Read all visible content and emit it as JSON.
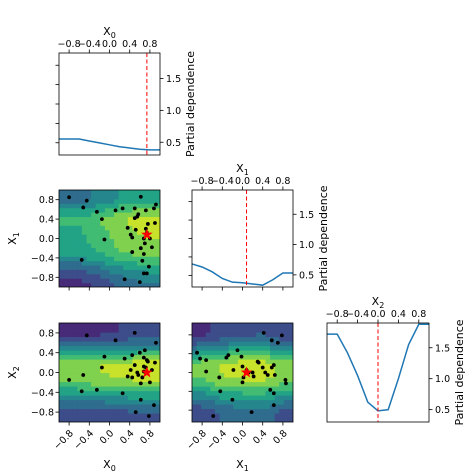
{
  "chart_data": {
    "type": "pairplot",
    "variables": [
      {
        "name": "X",
        "sub": "0",
        "ticks": [
          "−0.8",
          "−0.4",
          "0.0",
          "0.4",
          "0.8"
        ],
        "tick_values": [
          -0.8,
          -0.4,
          0.0,
          0.4,
          0.8
        ],
        "range": [
          -1.0,
          1.0
        ]
      },
      {
        "name": "X",
        "sub": "1",
        "ticks": [
          "−0.8",
          "−0.4",
          "0.0",
          "0.4",
          "0.8"
        ],
        "tick_values": [
          -0.8,
          -0.4,
          0.0,
          0.4,
          0.8
        ],
        "range": [
          -1.0,
          1.0
        ]
      },
      {
        "name": "X",
        "sub": "2",
        "ticks": [
          "−0.8",
          "−0.4",
          "0.0",
          "0.4",
          "0.8"
        ],
        "tick_values": [
          -0.8,
          -0.4,
          0.0,
          0.4,
          0.8
        ],
        "range": [
          -1.0,
          1.0
        ]
      }
    ],
    "diagonal": [
      {
        "ylabel": "Partial dependence",
        "yticks": [
          "0.5",
          "1.0",
          "1.5"
        ],
        "ytick_values": [
          0.5,
          1.0,
          1.5
        ],
        "ylim": [
          0.3,
          1.9
        ],
        "line_color": "#1f77b4",
        "x": [
          -1.0,
          -0.8,
          -0.6,
          -0.4,
          -0.2,
          0.0,
          0.2,
          0.4,
          0.6,
          0.8,
          1.0
        ],
        "y": [
          0.55,
          0.55,
          0.55,
          0.52,
          0.49,
          0.46,
          0.43,
          0.41,
          0.39,
          0.38,
          0.38
        ],
        "best": 0.74
      },
      {
        "ylabel": "Partial dependence",
        "yticks": [
          "0.5",
          "1.0",
          "1.5"
        ],
        "ytick_values": [
          0.5,
          1.0,
          1.5
        ],
        "ylim": [
          0.3,
          1.9
        ],
        "line_color": "#1f77b4",
        "x": [
          -1.0,
          -0.8,
          -0.6,
          -0.4,
          -0.2,
          0.0,
          0.2,
          0.4,
          0.6,
          0.8,
          1.0
        ],
        "y": [
          0.68,
          0.63,
          0.55,
          0.44,
          0.38,
          0.37,
          0.35,
          0.33,
          0.42,
          0.53,
          0.53
        ],
        "best": 0.08
      },
      {
        "ylabel": "Partial dependence",
        "yticks": [
          "0.5",
          "1.0",
          "1.5"
        ],
        "ytick_values": [
          0.5,
          1.0,
          1.5
        ],
        "ylim": [
          0.3,
          1.9
        ],
        "line_color": "#1f77b4",
        "x": [
          -1.0,
          -0.8,
          -0.6,
          -0.4,
          -0.2,
          0.0,
          0.2,
          0.4,
          0.6,
          0.8,
          1.0
        ],
        "y": [
          1.72,
          1.72,
          1.42,
          1.05,
          0.62,
          0.48,
          0.5,
          1.0,
          1.55,
          1.88,
          1.88
        ],
        "best": 0.0
      }
    ],
    "best_marker_color": "#ff0000",
    "points": [
      [
        0.92,
        0.7,
        0.6
      ],
      [
        0.84,
        -0.18,
        0.05
      ],
      [
        0.52,
        0.18,
        -0.8
      ],
      [
        0.72,
        0.58,
        0.1
      ],
      [
        0.68,
        -0.32,
        0.3
      ],
      [
        0.62,
        -0.2,
        -0.55
      ],
      [
        0.65,
        -0.46,
        -0.1
      ],
      [
        0.74,
        0.12,
        0.0
      ],
      [
        0.76,
        0.3,
        0.22
      ],
      [
        0.6,
        -0.9,
        0.4
      ],
      [
        0.57,
        0.5,
        -0.05
      ],
      [
        0.72,
        0.2,
        0.0
      ],
      [
        0.88,
        0.62,
        -0.66
      ],
      [
        0.5,
        0.42,
        0.8
      ],
      [
        0.8,
        0.0,
        -0.2
      ],
      [
        0.9,
        0.32,
        0.2
      ],
      [
        0.42,
        0.08,
        0.05
      ],
      [
        0.3,
        -0.84,
        0.28
      ],
      [
        -0.25,
        0.55,
        -0.35
      ],
      [
        -0.15,
        0.4,
        0.1
      ],
      [
        -0.52,
        0.64,
        -0.05
      ],
      [
        0.55,
        0.45,
        0.0
      ],
      [
        0.45,
        -0.28,
        0.35
      ],
      [
        0.68,
        -0.72,
        0.02
      ],
      [
        0.7,
        -0.1,
        0.45
      ],
      [
        0.36,
        0.22,
        -0.08
      ],
      [
        0.5,
        0.62,
        0.15
      ],
      [
        0.26,
        0.62,
        -0.42
      ],
      [
        -0.55,
        -0.44,
        -0.38
      ],
      [
        0.12,
        0.58,
        0.65
      ],
      [
        -0.8,
        0.85,
        -0.15
      ],
      [
        0.78,
        -0.58,
        -0.88
      ],
      [
        0.74,
        -0.72,
        0.25
      ],
      [
        0.62,
        0.86,
        -0.22
      ],
      [
        0.45,
        0.02,
        -0.1
      ],
      [
        -0.45,
        0.78,
        0.75
      ],
      [
        -0.1,
        -0.02,
        0.32
      ],
      [
        0.68,
        0.0,
        0.12
      ]
    ],
    "best": [
      0.74,
      0.08,
      0.0
    ]
  }
}
